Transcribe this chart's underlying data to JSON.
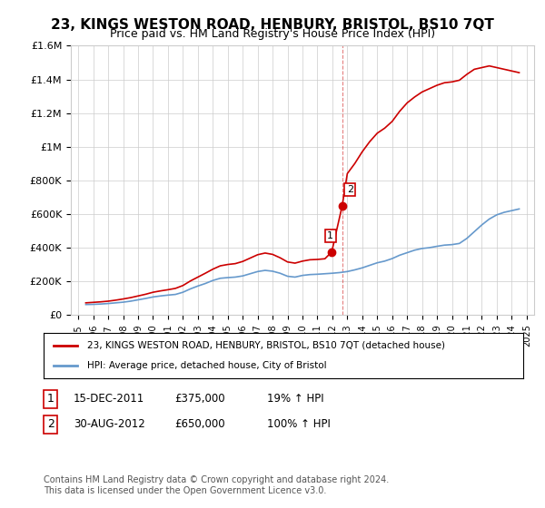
{
  "title": "23, KINGS WESTON ROAD, HENBURY, BRISTOL, BS10 7QT",
  "subtitle": "Price paid vs. HM Land Registry's House Price Index (HPI)",
  "title_fontsize": 11,
  "subtitle_fontsize": 9,
  "background_color": "#ffffff",
  "plot_bg_color": "#ffffff",
  "grid_color": "#cccccc",
  "line1_color": "#cc0000",
  "line2_color": "#6699cc",
  "ylim": [
    0,
    1600000
  ],
  "yticks": [
    0,
    200000,
    400000,
    600000,
    800000,
    1000000,
    1200000,
    1400000,
    1600000
  ],
  "ytick_labels": [
    "£0",
    "£200K",
    "£400K",
    "£600K",
    "£800K",
    "£1M",
    "£1.2M",
    "£1.4M",
    "£1.6M"
  ],
  "xmin_year": 1995,
  "xmax_year": 2025,
  "xtick_years": [
    1995,
    1996,
    1997,
    1998,
    1999,
    2000,
    2001,
    2002,
    2003,
    2004,
    2005,
    2006,
    2007,
    2008,
    2009,
    2010,
    2011,
    2012,
    2013,
    2014,
    2015,
    2016,
    2017,
    2018,
    2019,
    2020,
    2021,
    2022,
    2023,
    2024,
    2025
  ],
  "legend_line1": "23, KINGS WESTON ROAD, HENBURY, BRISTOL, BS10 7QT (detached house)",
  "legend_line2": "HPI: Average price, detached house, City of Bristol",
  "sale1_year": 2011.96,
  "sale1_price": 375000,
  "sale1_label": "1",
  "sale2_year": 2012.66,
  "sale2_price": 650000,
  "sale2_label": "2",
  "annotation1": "1   15-DEC-2011        £375,000        19% ↑ HPI",
  "annotation2": "2   30-AUG-2012        £650,000        100% ↑ HPI",
  "footer": "Contains HM Land Registry data © Crown copyright and database right 2024.\nThis data is licensed under the Open Government Licence v3.0.",
  "hpi_data": {
    "years": [
      1995.5,
      1996.0,
      1996.5,
      1997.0,
      1997.5,
      1998.0,
      1998.5,
      1999.0,
      1999.5,
      2000.0,
      2000.5,
      2001.0,
      2001.5,
      2002.0,
      2002.5,
      2003.0,
      2003.5,
      2004.0,
      2004.5,
      2005.0,
      2005.5,
      2006.0,
      2006.5,
      2007.0,
      2007.5,
      2008.0,
      2008.5,
      2009.0,
      2009.5,
      2010.0,
      2010.5,
      2011.0,
      2011.5,
      2012.0,
      2012.5,
      2013.0,
      2013.5,
      2014.0,
      2014.5,
      2015.0,
      2015.5,
      2016.0,
      2016.5,
      2017.0,
      2017.5,
      2018.0,
      2018.5,
      2019.0,
      2019.5,
      2020.0,
      2020.5,
      2021.0,
      2021.5,
      2022.0,
      2022.5,
      2023.0,
      2023.5,
      2024.0,
      2024.5
    ],
    "values": [
      62000,
      63000,
      65000,
      68000,
      72000,
      76000,
      82000,
      90000,
      98000,
      107000,
      113000,
      118000,
      122000,
      135000,
      155000,
      172000,
      187000,
      205000,
      218000,
      222000,
      225000,
      232000,
      245000,
      258000,
      265000,
      260000,
      248000,
      230000,
      225000,
      235000,
      240000,
      242000,
      245000,
      248000,
      252000,
      258000,
      268000,
      280000,
      295000,
      310000,
      320000,
      335000,
      355000,
      370000,
      385000,
      395000,
      400000,
      408000,
      415000,
      418000,
      425000,
      455000,
      495000,
      535000,
      570000,
      595000,
      610000,
      620000,
      630000
    ]
  },
  "price_data": {
    "years": [
      1995.5,
      1996.0,
      1996.5,
      1997.0,
      1997.5,
      1998.0,
      1998.5,
      1999.0,
      1999.5,
      2000.0,
      2000.5,
      2001.0,
      2001.5,
      2002.0,
      2002.5,
      2003.0,
      2003.5,
      2004.0,
      2004.5,
      2005.0,
      2005.5,
      2006.0,
      2006.5,
      2007.0,
      2007.5,
      2008.0,
      2008.5,
      2009.0,
      2009.5,
      2010.0,
      2010.5,
      2011.0,
      2011.5,
      2011.96,
      2012.66,
      2013.0,
      2013.5,
      2014.0,
      2014.5,
      2015.0,
      2015.5,
      2016.0,
      2016.5,
      2017.0,
      2017.5,
      2018.0,
      2018.5,
      2019.0,
      2019.5,
      2020.0,
      2020.5,
      2021.0,
      2021.5,
      2022.0,
      2022.5,
      2023.0,
      2023.5,
      2024.0,
      2024.5
    ],
    "values": [
      72000,
      75000,
      78000,
      82000,
      88000,
      95000,
      103000,
      113000,
      123000,
      135000,
      143000,
      150000,
      158000,
      175000,
      202000,
      225000,
      248000,
      272000,
      292000,
      300000,
      305000,
      318000,
      338000,
      358000,
      368000,
      360000,
      340000,
      315000,
      308000,
      320000,
      328000,
      330000,
      334000,
      375000,
      650000,
      840000,
      900000,
      970000,
      1030000,
      1080000,
      1110000,
      1150000,
      1210000,
      1260000,
      1295000,
      1325000,
      1345000,
      1365000,
      1380000,
      1385000,
      1395000,
      1430000,
      1460000,
      1470000,
      1480000,
      1470000,
      1460000,
      1450000,
      1440000
    ]
  }
}
